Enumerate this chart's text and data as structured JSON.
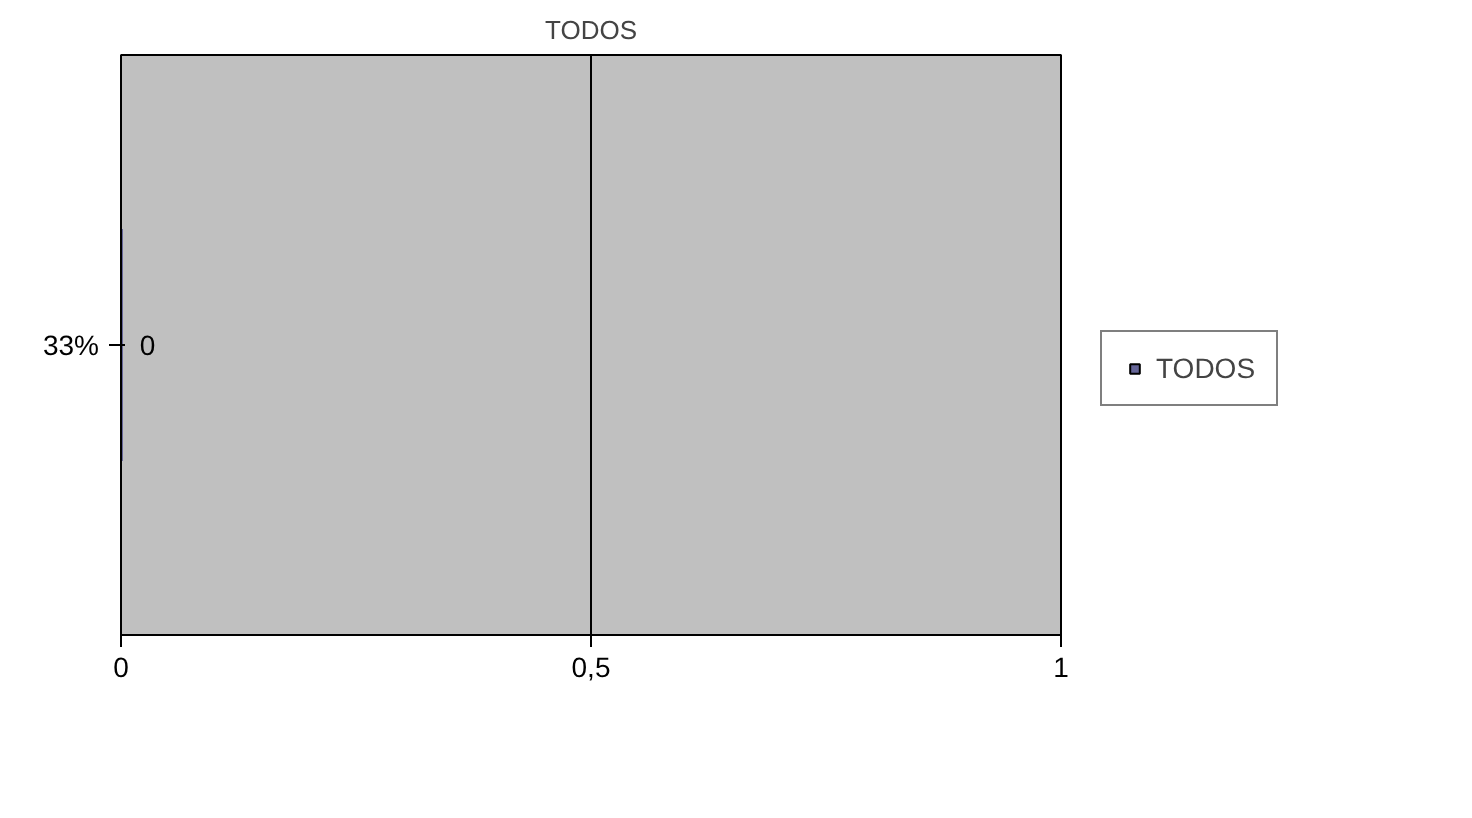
{
  "chart_data": {
    "type": "bar",
    "orientation": "horizontal",
    "title": "TODOS",
    "categories": [
      "33%"
    ],
    "series": [
      {
        "name": "TODOS",
        "color": "#666699",
        "values": [
          0
        ]
      }
    ],
    "xlim": [
      0,
      1
    ],
    "xticks": [
      0,
      {
        "value": 0.5,
        "label": "0,5"
      },
      1
    ],
    "grid": "x",
    "legend": "right",
    "data_labels": true
  }
}
